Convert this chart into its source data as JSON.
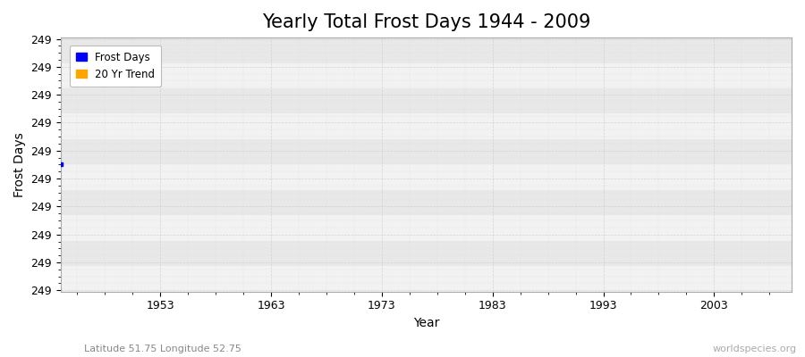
{
  "title": "Yearly Total Frost Days 1944 - 2009",
  "xlabel": "Year",
  "ylabel": "Frost Days",
  "year_start": 1944,
  "frost_days": 249,
  "ytick_value": "249",
  "ytick_count": 10,
  "xlim": [
    1944,
    2010
  ],
  "ylim_low": 248.5,
  "ylim_high": 249.5,
  "xticks": [
    1953,
    1963,
    1973,
    1983,
    1993,
    2003
  ],
  "frost_color": "#0000ff",
  "trend_color": "#ffa500",
  "fig_bg_color": "#ffffff",
  "plot_bg_light": "#f2f2f2",
  "plot_bg_dark": "#e8e8e8",
  "grid_major_color": "#cccccc",
  "grid_minor_color": "#dddddd",
  "legend_label_frost": "Frost Days",
  "legend_label_trend": "20 Yr Trend",
  "bottom_left_text": "Latitude 51.75 Longitude 52.75",
  "bottom_right_text": "worldspecies.org",
  "title_fontsize": 15,
  "axis_label_fontsize": 10,
  "tick_fontsize": 9,
  "annotation_fontsize": 8
}
